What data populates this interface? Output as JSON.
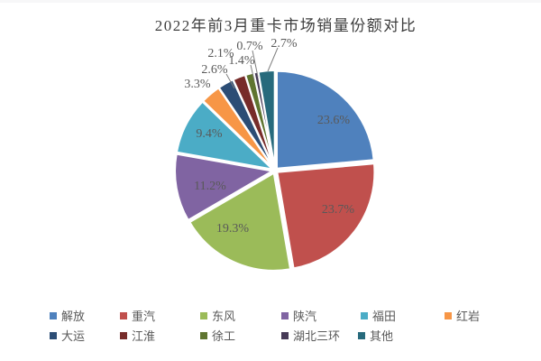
{
  "title": "2022年前3月重卡市场销量份额对比",
  "background": "#ffffff",
  "label_color": "#595959",
  "title_color": "#3d3d3d",
  "leader_line_color": "#7f7f7f",
  "chart_data": {
    "type": "pie",
    "title": "2022年前3月重卡市场销量份额对比",
    "direction": "clockwise",
    "start_angle_deg": 0,
    "legend_position": "bottom",
    "series": [
      {
        "name": "解放",
        "value": 23.6,
        "label": "23.6%",
        "color": "#4F81BD"
      },
      {
        "name": "重汽",
        "value": 23.7,
        "label": "23.7%",
        "color": "#C0504D"
      },
      {
        "name": "东风",
        "value": 19.3,
        "label": "19.3%",
        "color": "#9BBB59"
      },
      {
        "name": "陕汽",
        "value": 11.2,
        "label": "11.2%",
        "color": "#8064A2"
      },
      {
        "name": "福田",
        "value": 9.4,
        "label": "9.4%",
        "color": "#4BACC6"
      },
      {
        "name": "红岩",
        "value": 3.3,
        "label": "3.3%",
        "color": "#F79646"
      },
      {
        "name": "大运",
        "value": 2.6,
        "label": "2.6%",
        "color": "#2C4D75"
      },
      {
        "name": "江淮",
        "value": 2.1,
        "label": "2.1%",
        "color": "#772C2A"
      },
      {
        "name": "徐工",
        "value": 1.4,
        "label": "1.4%",
        "color": "#5F7530"
      },
      {
        "name": "湖北三环",
        "value": 0.7,
        "label": "0.7%",
        "color": "#463A57"
      },
      {
        "name": "其他",
        "value": 2.7,
        "label": "2.7%",
        "color": "#276A7C"
      }
    ]
  }
}
